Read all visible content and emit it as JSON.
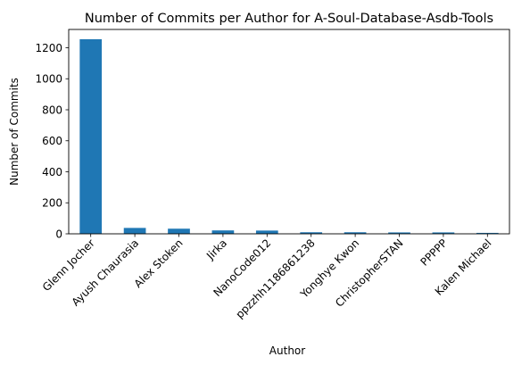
{
  "chart_data": {
    "type": "bar",
    "title": "Number of Commits per Author for A-Soul-Database-Asdb-Tools",
    "xlabel": "Author",
    "ylabel": "Number of Commits",
    "categories": [
      "Glenn Jocher",
      "Ayush Chaurasia",
      "Alex Stoken",
      "Jirka",
      "NanoCode012",
      "ppzzhh1186861238",
      "Yonghye Kwon",
      "ChristopherSTAN",
      "PPPPP",
      "Kalen Michael"
    ],
    "values": [
      1255,
      38,
      33,
      22,
      21,
      10,
      10,
      9,
      9,
      6
    ],
    "ylim": [
      0,
      1318
    ],
    "yticks": [
      0,
      200,
      400,
      600,
      800,
      1000,
      1200
    ],
    "grid": false,
    "legend": "none",
    "bar_color": "#1f77b4"
  }
}
